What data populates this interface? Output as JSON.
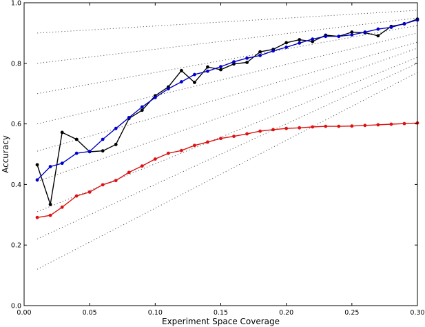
{
  "chart_data": {
    "type": "line",
    "xlabel": "Experiment Space Coverage",
    "ylabel": "Accuracy",
    "xlim": [
      0.0,
      0.3
    ],
    "ylim": [
      0.0,
      1.0
    ],
    "xticks": [
      "0.00",
      "0.05",
      "0.10",
      "0.15",
      "0.20",
      "0.25",
      "0.30"
    ],
    "yticks": [
      "0.0",
      "0.2",
      "0.4",
      "0.6",
      "0.8",
      "1.0"
    ],
    "grid": false,
    "legend": "none",
    "series": [
      {
        "color": "#000000",
        "x": [
          0.01,
          0.02,
          0.029,
          0.04,
          0.05,
          0.06,
          0.07,
          0.08,
          0.09,
          0.1,
          0.11,
          0.12,
          0.13,
          0.14,
          0.15,
          0.16,
          0.17,
          0.18,
          0.19,
          0.2,
          0.21,
          0.22,
          0.23,
          0.24,
          0.25,
          0.26,
          0.27,
          0.28,
          0.29,
          0.3
        ],
        "y": [
          0.465,
          0.334,
          0.572,
          0.549,
          0.508,
          0.511,
          0.532,
          0.618,
          0.645,
          0.693,
          0.722,
          0.776,
          0.737,
          0.788,
          0.779,
          0.798,
          0.803,
          0.838,
          0.846,
          0.868,
          0.878,
          0.872,
          0.893,
          0.889,
          0.903,
          0.901,
          0.891,
          0.922,
          0.93,
          0.946
        ]
      },
      {
        "color": "#0000cc",
        "x": [
          0.01,
          0.02,
          0.029,
          0.04,
          0.05,
          0.06,
          0.07,
          0.08,
          0.09,
          0.1,
          0.11,
          0.12,
          0.13,
          0.14,
          0.15,
          0.16,
          0.17,
          0.18,
          0.19,
          0.2,
          0.21,
          0.22,
          0.23,
          0.24,
          0.25,
          0.26,
          0.27,
          0.28,
          0.29,
          0.3
        ],
        "y": [
          0.415,
          0.459,
          0.47,
          0.503,
          0.509,
          0.549,
          0.585,
          0.621,
          0.656,
          0.687,
          0.716,
          0.739,
          0.763,
          0.774,
          0.789,
          0.805,
          0.817,
          0.826,
          0.841,
          0.853,
          0.867,
          0.88,
          0.889,
          0.889,
          0.894,
          0.903,
          0.913,
          0.919,
          0.931,
          0.943
        ]
      },
      {
        "color": "#dd1111",
        "x": [
          0.01,
          0.02,
          0.029,
          0.04,
          0.05,
          0.06,
          0.07,
          0.08,
          0.09,
          0.1,
          0.11,
          0.12,
          0.13,
          0.14,
          0.15,
          0.16,
          0.17,
          0.18,
          0.19,
          0.2,
          0.21,
          0.22,
          0.23,
          0.24,
          0.25,
          0.26,
          0.27,
          0.28,
          0.29,
          0.3
        ],
        "y": [
          0.291,
          0.298,
          0.325,
          0.362,
          0.375,
          0.399,
          0.413,
          0.44,
          0.461,
          0.484,
          0.503,
          0.512,
          0.529,
          0.54,
          0.552,
          0.559,
          0.567,
          0.576,
          0.581,
          0.585,
          0.587,
          0.59,
          0.592,
          0.592,
          0.593,
          0.595,
          0.597,
          0.599,
          0.601,
          0.603
        ]
      }
    ],
    "reference_lines": {
      "style": "dotted",
      "color": "#555555",
      "x_range": [
        0.01,
        0.3
      ],
      "segments": [
        [
          0.9,
          0.975
        ],
        [
          0.8,
          0.95
        ],
        [
          0.7,
          0.925
        ],
        [
          0.6,
          0.9
        ],
        [
          0.51,
          0.87
        ],
        [
          0.41,
          0.85
        ],
        [
          0.31,
          0.82
        ],
        [
          0.22,
          0.8
        ],
        [
          0.12,
          0.77
        ]
      ]
    }
  }
}
